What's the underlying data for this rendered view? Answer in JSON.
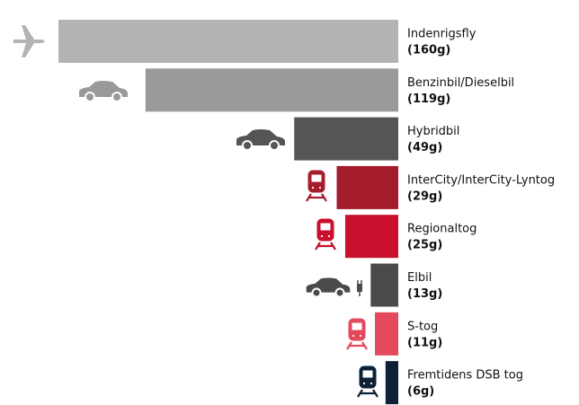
{
  "chart_data": {
    "type": "bar",
    "orientation": "horizontal",
    "categories": [
      "Indenrigsfly",
      "Benzinbil/Dieselbil",
      "Hybridbil",
      "InterCity/InterCity-Lyntog",
      "Regionaltog",
      "Elbil",
      "S-tog",
      "Fremtidens DSB tog"
    ],
    "values": [
      160,
      119,
      49,
      29,
      25,
      13,
      11,
      6
    ],
    "value_labels": [
      "(160g)",
      "(119g)",
      "(49g)",
      "(29g)",
      "(25g)",
      "(13g)",
      "(11g)",
      "(6g)"
    ],
    "colors": [
      "#b3b3b3",
      "#9a9a9a",
      "#555555",
      "#a51c2c",
      "#c8102e",
      "#4a4a4a",
      "#e3485c",
      "#0d2035"
    ]
  }
}
